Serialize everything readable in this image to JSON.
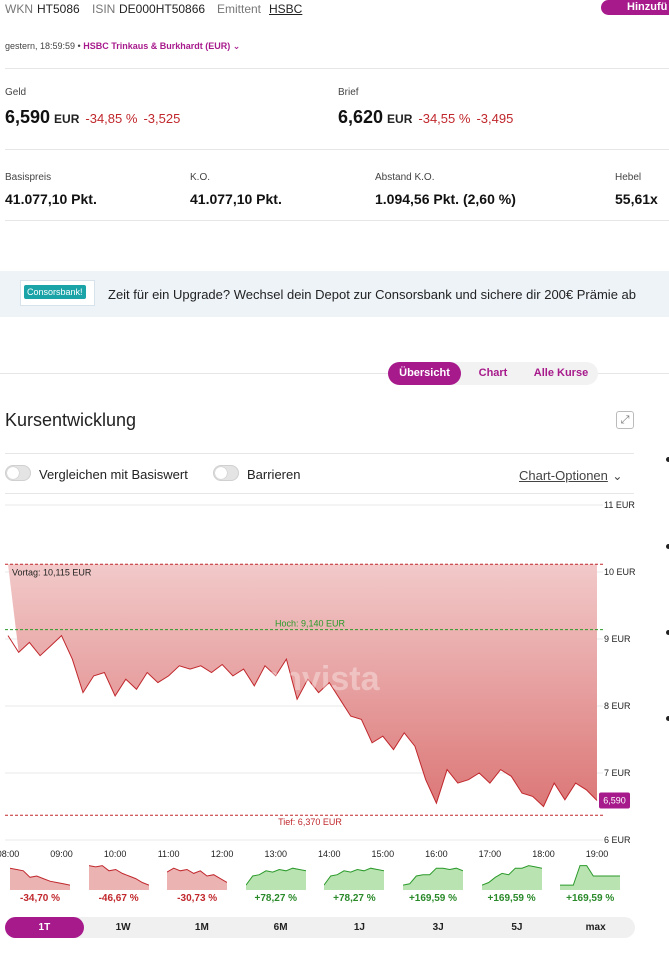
{
  "header": {
    "wkn_label": "WKN",
    "wkn": "HT5086",
    "isin_label": "ISIN",
    "isin": "DE000HT50866",
    "emittent_label": "Emittent",
    "emittent": "HSBC",
    "add_button": "Hinzufü"
  },
  "quote_meta": {
    "time": "gestern, 18:59:59 •",
    "exchange": "HSBC Trinkaus & Burkhardt (EUR)"
  },
  "geld": {
    "label": "Geld",
    "value": "6,590",
    "currency": "EUR",
    "pct": "-34,85 %",
    "abs": "-3,525"
  },
  "brief": {
    "label": "Brief",
    "value": "6,620",
    "currency": "EUR",
    "pct": "-34,55 %",
    "abs": "-3,495"
  },
  "stats": [
    {
      "label": "Basispreis",
      "value": "41.077,10 Pkt."
    },
    {
      "label": "K.O.",
      "value": "41.077,10 Pkt."
    },
    {
      "label": "Abstand K.O.",
      "value": "1.094,56 Pkt. (2,60 %)"
    },
    {
      "label": "Hebel",
      "value": "55,61x"
    }
  ],
  "banner": {
    "logo": "Consorsbank!",
    "text": "Zeit für ein Upgrade? Wechsel dein Depot zur Consorsbank und sichere dir 200€ Prämie ab"
  },
  "tabs": [
    "Übersicht",
    "Chart",
    "Alle Kurse"
  ],
  "section_title": "Kursentwicklung",
  "toggles": {
    "compare": "Vergleichen mit Basiswert",
    "barriers": "Barrieren"
  },
  "chart_options": "Chart-Optionen",
  "chart_data": {
    "type": "area",
    "ylim": [
      6,
      11
    ],
    "y_ticks": [
      "6 EUR",
      "7 EUR",
      "8 EUR",
      "9 EUR",
      "10 EUR",
      "11 EUR"
    ],
    "x_ticks": [
      "08:00",
      "09:00",
      "10:00",
      "11:00",
      "12:00",
      "13:00",
      "14:00",
      "15:00",
      "16:00",
      "17:00",
      "18:00",
      "19:00"
    ],
    "x_range": [
      8,
      19
    ],
    "reference_lines": [
      {
        "label": "Vortag: 10,115 EUR",
        "value": 10.115,
        "color": "#c0282d"
      },
      {
        "label": "Hoch: 9,140 EUR",
        "value": 9.14,
        "color": "#2a9a2a"
      },
      {
        "label": "Tief: 6,370 EUR",
        "value": 6.37,
        "color": "#c0282d"
      }
    ],
    "last_value_label": "6,590",
    "watermark": "onvista",
    "series": [
      {
        "x": [
          8.0,
          8.2,
          8.4,
          8.6,
          8.8,
          9.0,
          9.2,
          9.4,
          9.6,
          9.8,
          10.0,
          10.2,
          10.4,
          10.6,
          10.8,
          11.0,
          11.2,
          11.4,
          11.6,
          11.8,
          12.0,
          12.2,
          12.4,
          12.6,
          12.8,
          13.0,
          13.2,
          13.4,
          13.6,
          13.8,
          14.0,
          14.2,
          14.4,
          14.6,
          14.8,
          15.0,
          15.2,
          15.4,
          15.6,
          15.8,
          16.0,
          16.2,
          16.4,
          16.6,
          16.8,
          17.0,
          17.2,
          17.4,
          17.6,
          17.8,
          18.0,
          18.2,
          18.4,
          18.6,
          18.8,
          19.0
        ],
        "values": [
          9.05,
          8.8,
          8.95,
          8.75,
          8.9,
          9.05,
          8.7,
          8.2,
          8.45,
          8.5,
          8.15,
          8.4,
          8.25,
          8.5,
          8.35,
          8.45,
          8.6,
          8.55,
          8.6,
          8.5,
          8.62,
          8.45,
          8.55,
          8.3,
          8.6,
          8.45,
          8.7,
          8.1,
          8.4,
          8.2,
          8.35,
          8.1,
          7.85,
          7.8,
          7.45,
          7.55,
          7.35,
          7.6,
          7.4,
          6.9,
          6.55,
          7.05,
          6.85,
          6.9,
          7.0,
          6.85,
          7.05,
          6.95,
          6.7,
          6.65,
          6.5,
          6.85,
          6.6,
          6.85,
          6.75,
          6.59
        ]
      }
    ]
  },
  "mini_charts": [
    {
      "pct": "-34,70 %",
      "trend": "down"
    },
    {
      "pct": "-46,67 %",
      "trend": "down"
    },
    {
      "pct": "-30,73 %",
      "trend": "down"
    },
    {
      "pct": "+78,27 %",
      "trend": "up"
    },
    {
      "pct": "+78,27 %",
      "trend": "up"
    },
    {
      "pct": "+169,59 %",
      "trend": "up"
    },
    {
      "pct": "+169,59 %",
      "trend": "up"
    },
    {
      "pct": "+169,59 %",
      "trend": "up"
    }
  ],
  "ranges": [
    "1T",
    "1W",
    "1M",
    "6M",
    "1J",
    "3J",
    "5J",
    "max"
  ]
}
